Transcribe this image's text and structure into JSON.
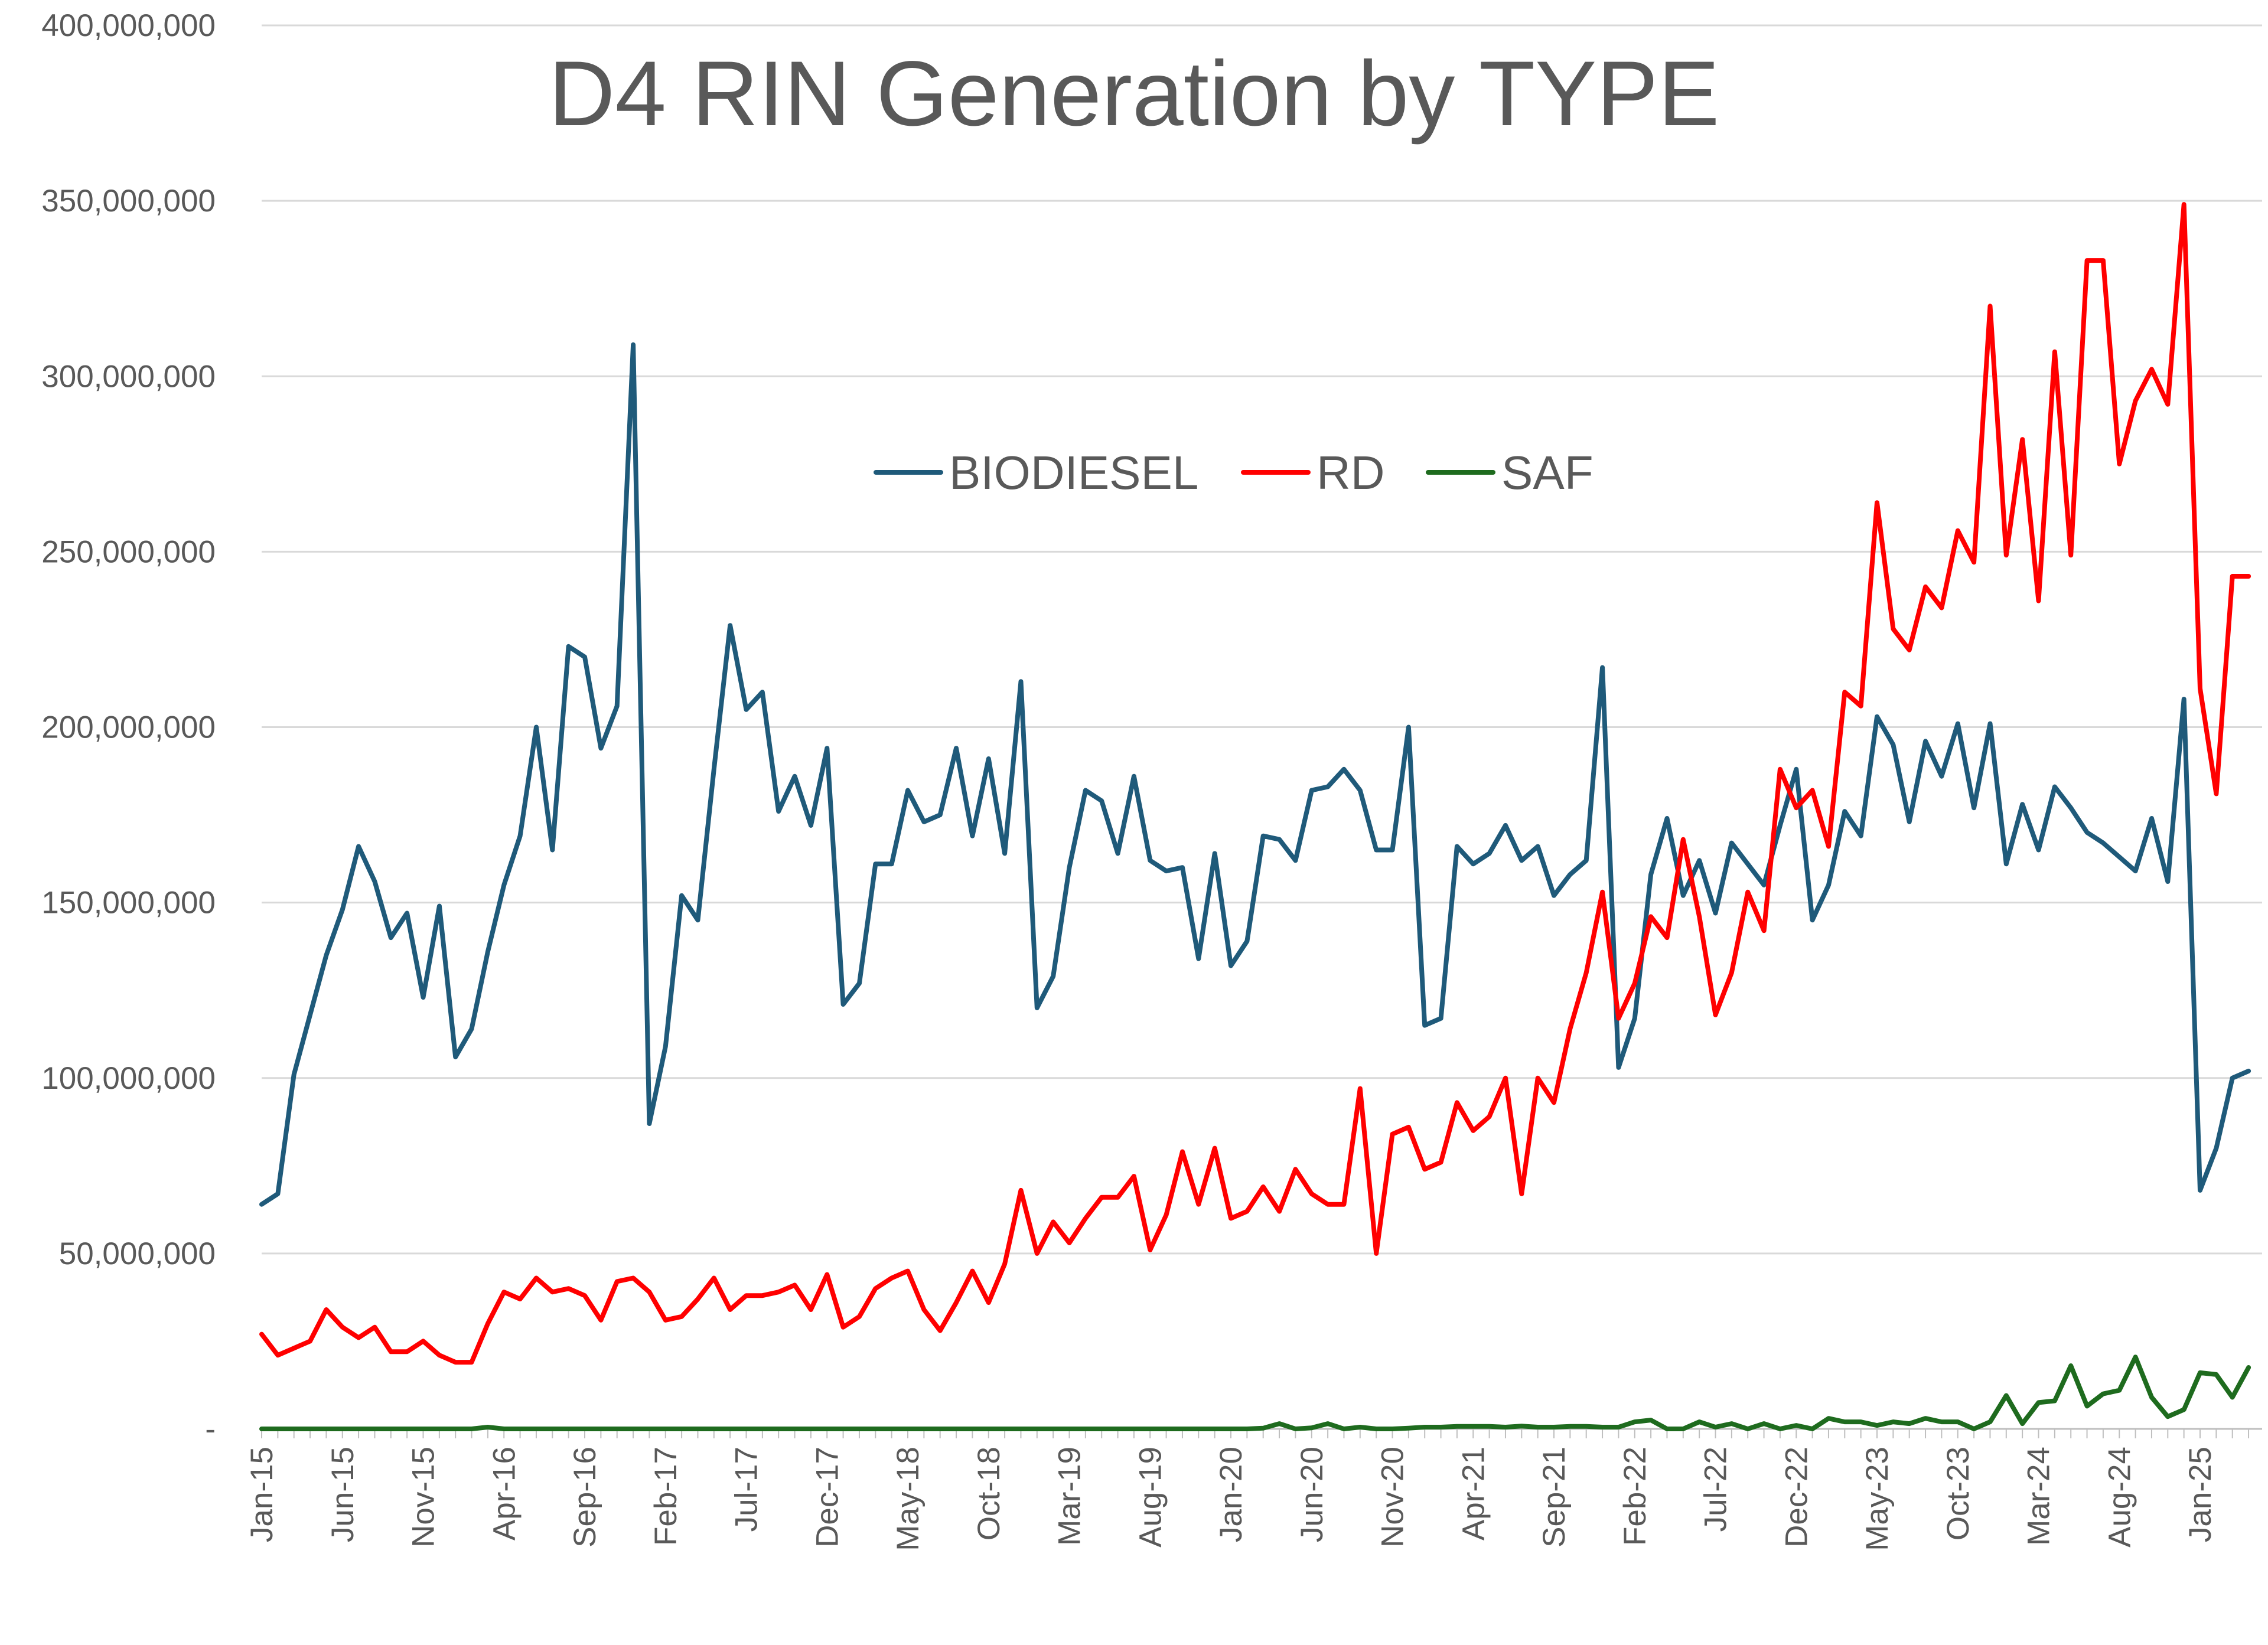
{
  "chart_data": {
    "type": "line",
    "title": "D4 RIN Generation by TYPE",
    "xlabel": "",
    "ylabel": "",
    "ylim": [
      0,
      400000000
    ],
    "y_ticks": [
      0,
      50000000,
      100000000,
      150000000,
      200000000,
      250000000,
      300000000,
      350000000,
      400000000
    ],
    "y_tick_labels": [
      "-",
      "50,000,000",
      "100,000,000",
      "150,000,000",
      "200,000,000",
      "250,000,000",
      "300,000,000",
      "350,000,000",
      "400,000,000"
    ],
    "x_tick_labels": [
      "Jan-15",
      "Jun-15",
      "Nov-15",
      "Apr-16",
      "Sep-16",
      "Feb-17",
      "Jul-17",
      "Dec-17",
      "May-18",
      "Oct-18",
      "Mar-19",
      "Aug-19",
      "Jan-20",
      "Jun-20",
      "Nov-20",
      "Apr-21",
      "Sep-21",
      "Feb-22",
      "Jul-22",
      "Dec-22",
      "May-23",
      "Oct-23",
      "Mar-24",
      "Aug-24",
      "Jan-25"
    ],
    "x_start": "Jan-15",
    "x_tick_every_months": 5,
    "grid": true,
    "legend_position": "top-center",
    "series": [
      {
        "name": "BIODIESEL",
        "color": "#1F5A7A",
        "values": [
          64000000,
          67000000,
          101000000,
          118000000,
          135000000,
          148000000,
          166000000,
          156000000,
          140000000,
          147000000,
          123000000,
          149000000,
          106000000,
          114000000,
          136000000,
          155000000,
          169000000,
          200000000,
          165000000,
          223000000,
          220000000,
          194000000,
          206000000,
          309000000,
          87000000,
          109000000,
          152000000,
          145000000,
          188000000,
          229000000,
          205000000,
          210000000,
          176000000,
          186000000,
          172000000,
          194000000,
          121000000,
          127000000,
          161000000,
          161000000,
          182000000,
          173000000,
          175000000,
          194000000,
          169000000,
          191000000,
          164000000,
          213000000,
          120000000,
          129000000,
          160000000,
          182000000,
          179000000,
          164000000,
          186000000,
          162000000,
          159000000,
          160000000,
          134000000,
          164000000,
          132000000,
          139000000,
          169000000,
          168000000,
          162000000,
          182000000,
          183000000,
          188000000,
          182000000,
          165000000,
          165000000,
          200000000,
          115000000,
          117000000,
          166000000,
          161000000,
          164000000,
          172000000,
          162000000,
          166000000,
          152000000,
          158000000,
          162000000,
          217000000,
          103000000,
          117000000,
          158000000,
          174000000,
          152000000,
          162000000,
          147000000,
          167000000,
          161000000,
          155000000,
          172000000,
          188000000,
          145000000,
          155000000,
          176000000,
          169000000,
          203000000,
          195000000,
          173000000,
          196000000,
          186000000,
          201000000,
          177000000,
          201000000,
          161000000,
          178000000,
          165000000,
          183000000,
          177000000,
          170000000,
          167000000,
          163000000,
          159000000,
          174000000,
          156000000,
          208000000,
          68000000,
          80000000,
          100000000,
          102000000
        ],
        "note_values_start": "Jan-15"
      },
      {
        "name": "RD",
        "color": "#FF0000",
        "values": [
          27000000,
          21000000,
          23000000,
          25000000,
          34000000,
          29000000,
          26000000,
          29000000,
          22000000,
          22000000,
          25000000,
          21000000,
          19000000,
          19000000,
          30000000,
          39000000,
          37000000,
          43000000,
          39000000,
          40000000,
          38000000,
          31000000,
          42000000,
          43000000,
          39000000,
          31000000,
          32000000,
          37000000,
          43000000,
          34000000,
          38000000,
          38000000,
          39000000,
          41000000,
          34000000,
          44000000,
          29000000,
          32000000,
          40000000,
          43000000,
          45000000,
          34000000,
          28000000,
          36000000,
          45000000,
          36000000,
          47000000,
          68000000,
          50000000,
          59000000,
          53000000,
          60000000,
          66000000,
          66000000,
          72000000,
          51000000,
          61000000,
          79000000,
          64000000,
          80000000,
          60000000,
          62000000,
          69000000,
          62000000,
          74000000,
          67000000,
          64000000,
          64000000,
          97000000,
          50000000,
          84000000,
          86000000,
          74000000,
          76000000,
          93000000,
          85000000,
          89000000,
          100000000,
          67000000,
          100000000,
          93000000,
          114000000,
          130000000,
          153000000,
          117000000,
          127000000,
          146000000,
          140000000,
          168000000,
          146000000,
          118000000,
          130000000,
          153000000,
          142000000,
          188000000,
          177000000,
          182000000,
          166000000,
          210000000,
          206000000,
          264000000,
          228000000,
          222000000,
          240000000,
          234000000,
          256000000,
          247000000,
          320000000,
          249000000,
          282000000,
          236000000,
          307000000,
          249000000,
          333000000,
          333000000,
          275000000,
          293000000,
          302000000,
          292000000,
          349000000,
          211000000,
          181000000,
          243000000,
          243000000
        ]
      },
      {
        "name": "SAF",
        "color": "#1E6B1E",
        "values": [
          0,
          0,
          0,
          0,
          0,
          0,
          0,
          0,
          0,
          0,
          0,
          0,
          0,
          0,
          500000,
          0,
          0,
          0,
          0,
          0,
          0,
          0,
          0,
          0,
          0,
          0,
          0,
          0,
          0,
          0,
          0,
          0,
          0,
          0,
          0,
          0,
          0,
          0,
          0,
          0,
          0,
          0,
          0,
          0,
          0,
          0,
          0,
          0,
          0,
          0,
          0,
          0,
          0,
          0,
          0,
          0,
          0,
          0,
          0,
          0,
          0,
          0,
          200000,
          1500000,
          0,
          300000,
          1500000,
          0,
          500000,
          0,
          0,
          200000,
          500000,
          500000,
          700000,
          700000,
          700000,
          500000,
          800000,
          500000,
          500000,
          700000,
          700000,
          500000,
          500000,
          2000000,
          2500000,
          0,
          0,
          2000000,
          500000,
          1500000,
          0,
          1500000,
          0,
          1000000,
          0,
          3000000,
          2000000,
          2000000,
          1000000,
          2000000,
          1500000,
          3000000,
          2000000,
          2000000,
          0,
          2000000,
          9500000,
          1500000,
          7500000,
          8000000,
          18000000,
          6500000,
          10000000,
          11000000,
          20500000,
          9000000,
          3500000,
          5500000,
          16000000,
          15500000,
          9000000,
          17500000
        ]
      }
    ]
  }
}
